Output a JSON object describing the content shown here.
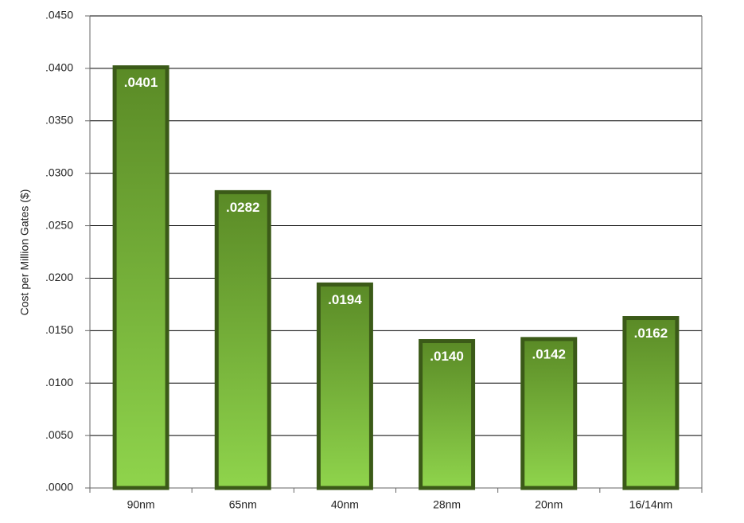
{
  "chart_data": {
    "type": "bar",
    "y_label": "Cost per Million Gates ($)",
    "categories": [
      "90nm",
      "65nm",
      "40nm",
      "28nm",
      "20nm",
      "16/14nm"
    ],
    "values": [
      0.0401,
      0.0282,
      0.0194,
      0.014,
      0.0142,
      0.0162
    ],
    "value_labels": [
      ".0401",
      ".0282",
      ".0194",
      ".0140",
      ".0142",
      ".0162"
    ],
    "color": "#8fd44c",
    "ylim": [
      0,
      0.045
    ],
    "yticks": [
      {
        "value": 0,
        "label": ".0000"
      },
      {
        "value": 0.005,
        "label": ".0050"
      },
      {
        "value": 0.01,
        "label": ".0100"
      },
      {
        "value": 0.015,
        "label": ".0150"
      },
      {
        "value": 0.02,
        "label": ".0200"
      },
      {
        "value": 0.025,
        "label": ".0250"
      },
      {
        "value": 0.03,
        "label": ".0300"
      },
      {
        "value": 0.035,
        "label": ".0350"
      },
      {
        "value": 0.04,
        "label": ".0400"
      },
      {
        "value": 0.045,
        "label": ".0450"
      }
    ],
    "grid": true
  }
}
